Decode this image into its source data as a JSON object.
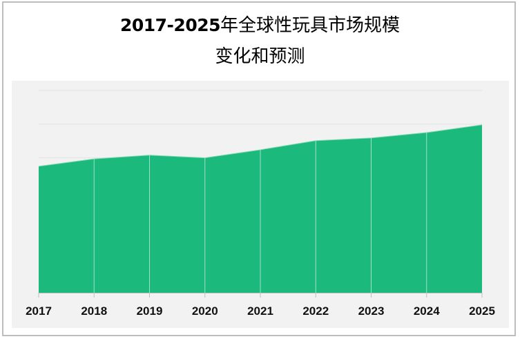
{
  "title": {
    "line1_year": "2017-2025",
    "line1_rest": "年全球性玩具市场规模",
    "line2": "变化和预测"
  },
  "colors": {
    "area_fill": "#1bb97c",
    "plot_background": "#f2f2f2",
    "gridline": "#e2e2e2",
    "frame_border": "#bdbdbd"
  },
  "chart_data": {
    "type": "area",
    "title": "2017-2025年全球性玩具市场规模变化和预测",
    "xlabel": "",
    "ylabel": "",
    "categories": [
      "2017",
      "2018",
      "2019",
      "2020",
      "2021",
      "2022",
      "2023",
      "2024",
      "2025"
    ],
    "values": [
      3.75,
      3.97,
      4.08,
      4.0,
      4.24,
      4.51,
      4.59,
      4.75,
      4.98
    ],
    "value_units_note": "relative units (y-axis unlabeled; 1 unit = 1 gridline interval)",
    "ylim": [
      0,
      6
    ],
    "grid": true,
    "y_tick_labels_visible": false,
    "legend": null
  },
  "x_axis": {
    "labels": [
      "2017",
      "2018",
      "2019",
      "2020",
      "2021",
      "2022",
      "2023",
      "2024",
      "2025"
    ]
  }
}
